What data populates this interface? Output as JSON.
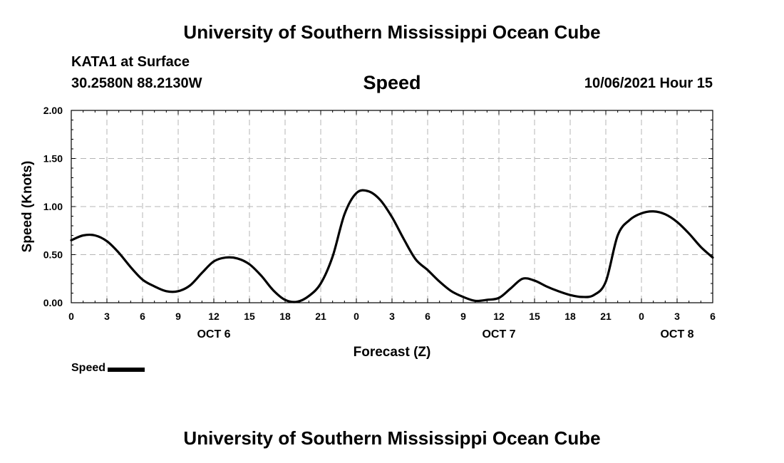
{
  "header": {
    "title": "University of Southern Mississippi Ocean Cube",
    "station": "KATA1 at Surface",
    "coordinates": "30.2580N  88.2130W",
    "variable": "Speed",
    "datetime": "10/06/2021 Hour 15"
  },
  "footer": {
    "title": "University of Southern Mississippi Ocean Cube"
  },
  "legend": {
    "label": "Speed"
  },
  "chart_data": {
    "type": "line",
    "title": "Speed",
    "xlabel": "Forecast (Z)",
    "ylabel": "Speed (Knots)",
    "xlim": [
      0,
      54
    ],
    "ylim": [
      0,
      2
    ],
    "grid": true,
    "yticks": [
      0,
      0.5,
      1,
      1.5,
      2
    ],
    "ytick_labels": [
      "0.00",
      "0.50",
      "1.00",
      "1.50",
      "2.00"
    ],
    "xticks": [
      0,
      3,
      6,
      9,
      12,
      15,
      18,
      21,
      24,
      27,
      30,
      33,
      36,
      39,
      42,
      45,
      48,
      51,
      54
    ],
    "xtick_labels": [
      "0",
      "3",
      "6",
      "9",
      "12",
      "15",
      "18",
      "21",
      "0",
      "3",
      "6",
      "9",
      "12",
      "15",
      "18",
      "21",
      "0",
      "3",
      "6"
    ],
    "date_labels": [
      {
        "x": 12,
        "label": "OCT 6"
      },
      {
        "x": 36,
        "label": "OCT 7"
      },
      {
        "x": 51,
        "label": "OCT 8"
      }
    ],
    "series": [
      {
        "name": "Speed",
        "color": "#000000",
        "x": [
          0,
          1,
          2,
          3,
          4,
          5,
          6,
          7,
          8,
          9,
          10,
          11,
          12,
          13,
          14,
          15,
          16,
          17,
          18,
          19,
          20,
          21,
          22,
          23,
          24,
          25,
          26,
          27,
          28,
          29,
          30,
          31,
          32,
          33,
          34,
          35,
          36,
          37,
          38,
          39,
          40,
          41,
          42,
          43,
          44,
          45,
          46,
          47,
          48,
          49,
          50,
          51,
          52,
          53,
          54
        ],
        "values": [
          0.65,
          0.7,
          0.7,
          0.64,
          0.52,
          0.37,
          0.24,
          0.17,
          0.12,
          0.12,
          0.18,
          0.31,
          0.43,
          0.47,
          0.46,
          0.4,
          0.28,
          0.13,
          0.03,
          0.01,
          0.07,
          0.2,
          0.48,
          0.92,
          1.14,
          1.16,
          1.07,
          0.89,
          0.66,
          0.45,
          0.34,
          0.22,
          0.12,
          0.06,
          0.02,
          0.03,
          0.05,
          0.15,
          0.25,
          0.23,
          0.17,
          0.12,
          0.08,
          0.06,
          0.08,
          0.22,
          0.7,
          0.86,
          0.93,
          0.95,
          0.92,
          0.84,
          0.72,
          0.58,
          0.47
        ]
      }
    ]
  }
}
